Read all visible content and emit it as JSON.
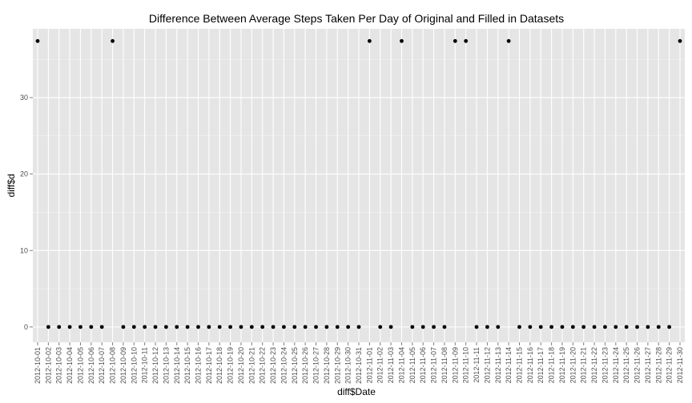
{
  "chart_data": {
    "type": "scatter",
    "title": "Difference Between Average Steps Taken Per Day of Original and Filled in Datasets",
    "xlabel": "diff$Date",
    "ylabel": "diff$d",
    "ylim": [
      -2,
      39
    ],
    "yticks": [
      0,
      10,
      20,
      30
    ],
    "grid": true,
    "legend": "none",
    "colors": {
      "panel": "#e5e5e5",
      "grid_major": "#ffffff",
      "grid_minor": "#f2f2f2",
      "point": "#000000",
      "tick_label": "#4d4d4d"
    },
    "x": [
      "2012-10-01",
      "2012-10-02",
      "2012-10-03",
      "2012-10-04",
      "2012-10-05",
      "2012-10-06",
      "2012-10-07",
      "2012-10-08",
      "2012-10-09",
      "2012-10-10",
      "2012-10-11",
      "2012-10-12",
      "2012-10-13",
      "2012-10-14",
      "2012-10-15",
      "2012-10-16",
      "2012-10-17",
      "2012-10-18",
      "2012-10-19",
      "2012-10-20",
      "2012-10-21",
      "2012-10-22",
      "2012-10-23",
      "2012-10-24",
      "2012-10-25",
      "2012-10-26",
      "2012-10-27",
      "2012-10-28",
      "2012-10-29",
      "2012-10-30",
      "2012-10-31",
      "2012-11-01",
      "2012-11-02",
      "2012-11-03",
      "2012-11-04",
      "2012-11-05",
      "2012-11-06",
      "2012-11-07",
      "2012-11-08",
      "2012-11-09",
      "2012-11-10",
      "2012-11-11",
      "2012-11-12",
      "2012-11-13",
      "2012-11-14",
      "2012-11-15",
      "2012-11-16",
      "2012-11-17",
      "2012-11-18",
      "2012-11-19",
      "2012-11-20",
      "2012-11-21",
      "2012-11-22",
      "2012-11-23",
      "2012-11-24",
      "2012-11-25",
      "2012-11-26",
      "2012-11-27",
      "2012-11-28",
      "2012-11-29",
      "2012-11-30"
    ],
    "y": [
      37.4,
      0,
      0,
      0,
      0,
      0,
      0,
      37.4,
      0,
      0,
      0,
      0,
      0,
      0,
      0,
      0,
      0,
      0,
      0,
      0,
      0,
      0,
      0,
      0,
      0,
      0,
      0,
      0,
      0,
      0,
      0,
      37.4,
      0,
      0,
      37.4,
      0,
      0,
      0,
      0,
      37.4,
      37.4,
      0,
      0,
      0,
      37.4,
      0,
      0,
      0,
      0,
      0,
      0,
      0,
      0,
      0,
      0,
      0,
      0,
      0,
      0,
      0,
      37.4
    ]
  }
}
